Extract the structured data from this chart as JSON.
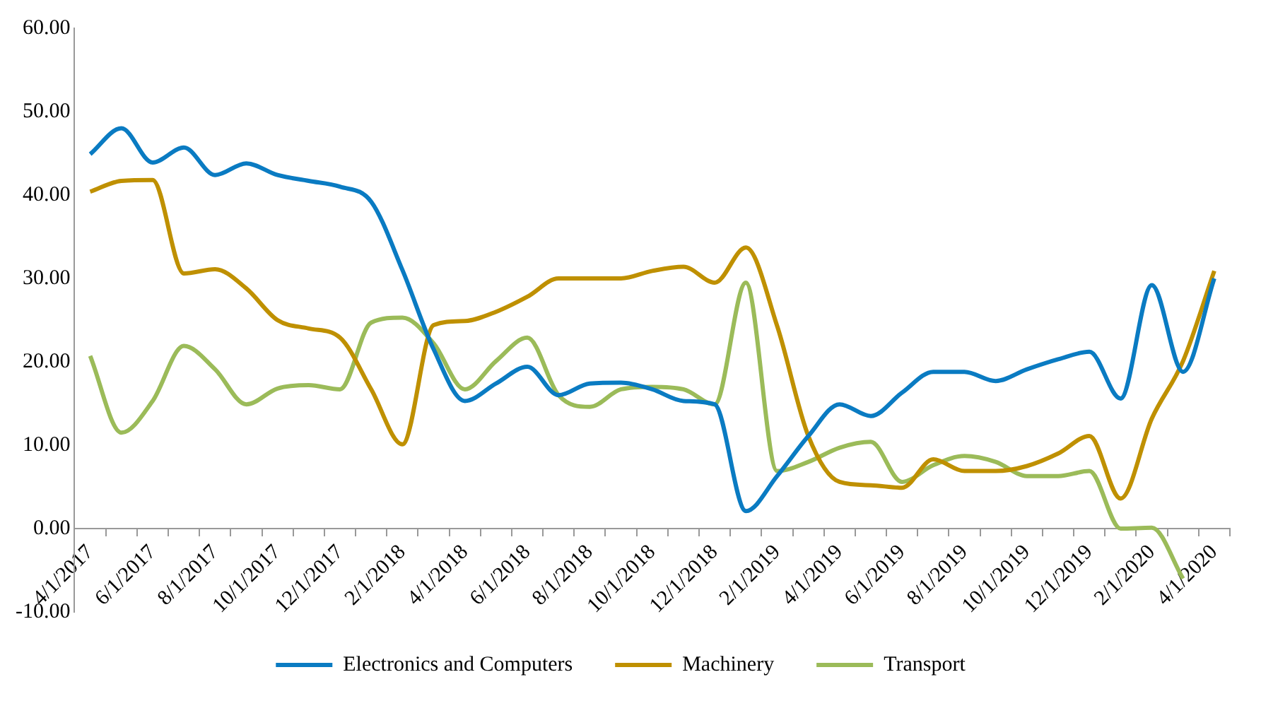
{
  "chart_data": {
    "type": "line",
    "categories": [
      "4/1/2017",
      null,
      "6/1/2017",
      null,
      "8/1/2017",
      null,
      "10/1/2017",
      null,
      "12/1/2017",
      null,
      "2/1/2018",
      null,
      "4/1/2018",
      null,
      "6/1/2018",
      null,
      "8/1/2018",
      null,
      "10/1/2018",
      null,
      "12/1/2018",
      null,
      "2/1/2019",
      null,
      "4/1/2019",
      null,
      "6/1/2019",
      null,
      "8/1/2019",
      null,
      "10/1/2019",
      null,
      "12/1/2019",
      null,
      "2/1/2020",
      null,
      "4/1/2020"
    ],
    "series": [
      {
        "name": "Electronics and Computers",
        "color": "#0a7bc2",
        "values": [
          44.9,
          48,
          43.9,
          45.7,
          42.4,
          43.8,
          42.4,
          41.7,
          41,
          39.2,
          31,
          21.5,
          15.3,
          17.4,
          19.4,
          16,
          17.4,
          17.5,
          16.7,
          15.3,
          14.9,
          2.1,
          6.3,
          11.1,
          14.9,
          13.5,
          16.3,
          18.8,
          18.8,
          17.7,
          19.1,
          20.3,
          21.2,
          15.6,
          29.2,
          18.8,
          30
        ]
      },
      {
        "name": "Machinery",
        "color": "#bf9000",
        "values": [
          40.4,
          41.7,
          41.8,
          30.6,
          31.1,
          28.8,
          25,
          24,
          22.9,
          16.7,
          10.1,
          24.4,
          24.9,
          26,
          27.8,
          30,
          30,
          30,
          30.9,
          31.4,
          29.5,
          33.7,
          24.3,
          11.1,
          5.6,
          5.2,
          4.9,
          8.3,
          6.9,
          6.9,
          7.5,
          9,
          11.1,
          3.6,
          13.2,
          20.1,
          30.9
        ]
      },
      {
        "name": "Transport",
        "color": "#9bbb59",
        "values": [
          20.7,
          11.5,
          15.3,
          21.9,
          19.1,
          14.9,
          16.8,
          17.2,
          16.7,
          24.7,
          25.3,
          22.2,
          16.7,
          20.1,
          22.9,
          16,
          14.6,
          16.7,
          17,
          16.7,
          14.9,
          29.5,
          6.9,
          8,
          9.7,
          10.4,
          5.6,
          7.6,
          8.7,
          8,
          6.3,
          6.3,
          6.9,
          0,
          0.1,
          -6,
          null
        ]
      }
    ],
    "ylim": [
      -10,
      60
    ],
    "yticks": [
      {
        "value": -10,
        "label": "-10.00"
      },
      {
        "value": 0,
        "label": "0.00"
      },
      {
        "value": 10,
        "label": "10.00"
      },
      {
        "value": 20,
        "label": "20.00"
      },
      {
        "value": 30,
        "label": "30.00"
      },
      {
        "value": 40,
        "label": "40.00"
      },
      {
        "value": 50,
        "label": "50.00"
      },
      {
        "value": 60,
        "label": "60.00"
      }
    ],
    "grid": false,
    "legend": "bottom",
    "marker": "none",
    "line_style": "solid"
  }
}
